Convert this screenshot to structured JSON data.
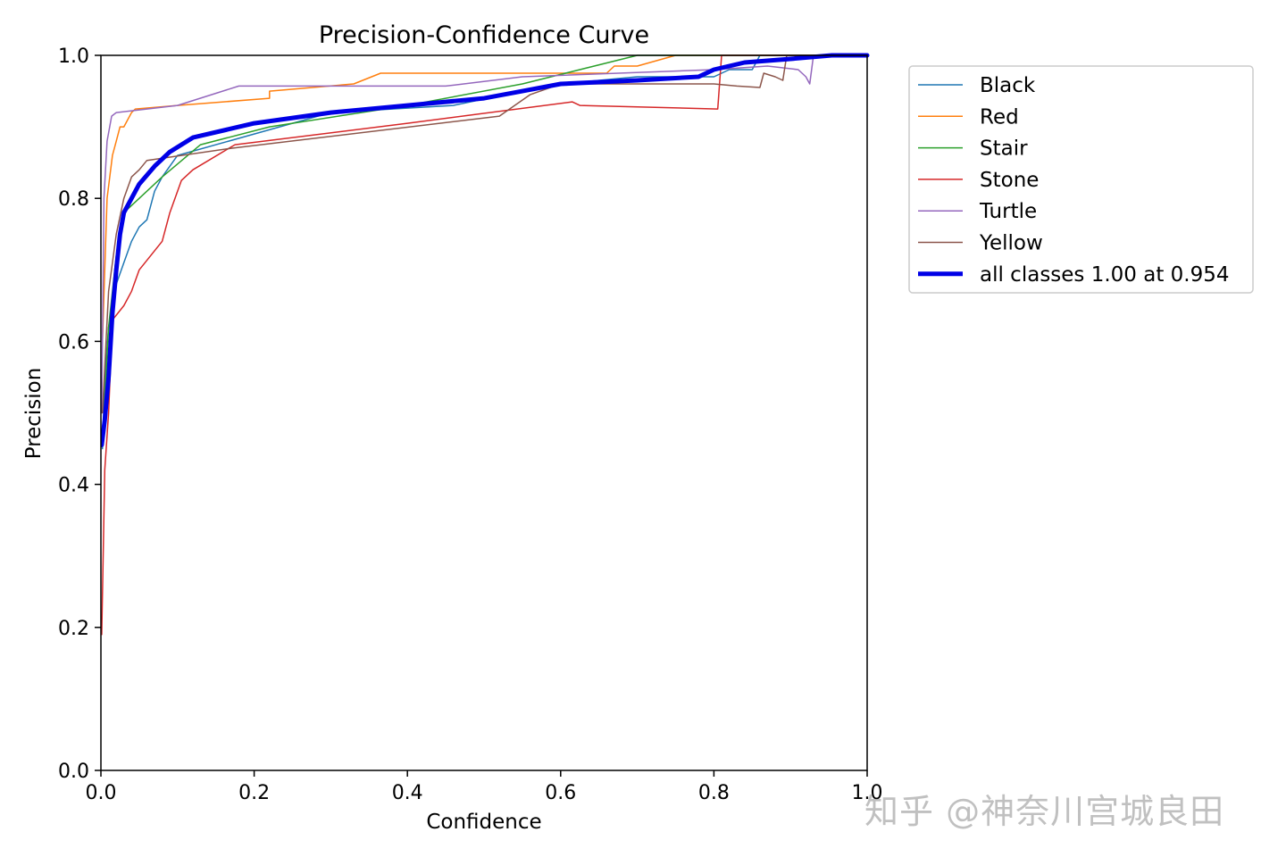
{
  "chart_data": {
    "type": "line",
    "title": "Precision-Confidence Curve",
    "xlabel": "Confidence",
    "ylabel": "Precision",
    "xlim": [
      0,
      1
    ],
    "ylim": [
      0,
      1
    ],
    "xticks": [
      "0.0",
      "0.2",
      "0.4",
      "0.6",
      "0.8",
      "1.0"
    ],
    "yticks": [
      "0.0",
      "0.2",
      "0.4",
      "0.6",
      "0.8",
      "1.0"
    ],
    "grid": false,
    "legend_position": "outside-top-right",
    "series": [
      {
        "name": "Black",
        "color": "#1f77b4",
        "width": 1.5,
        "points": [
          [
            0.002,
            0.45
          ],
          [
            0.005,
            0.55
          ],
          [
            0.01,
            0.62
          ],
          [
            0.02,
            0.68
          ],
          [
            0.03,
            0.71
          ],
          [
            0.04,
            0.74
          ],
          [
            0.05,
            0.76
          ],
          [
            0.06,
            0.77
          ],
          [
            0.07,
            0.81
          ],
          [
            0.08,
            0.83
          ],
          [
            0.1,
            0.86
          ],
          [
            0.2,
            0.89
          ],
          [
            0.3,
            0.92
          ],
          [
            0.46,
            0.93
          ],
          [
            0.55,
            0.95
          ],
          [
            0.6,
            0.96
          ],
          [
            0.7,
            0.97
          ],
          [
            0.8,
            0.97
          ],
          [
            0.82,
            0.98
          ],
          [
            0.85,
            0.98
          ],
          [
            0.86,
            1.0
          ],
          [
            1.0,
            1.0
          ]
        ]
      },
      {
        "name": "Red",
        "color": "#ff7f0e",
        "width": 1.5,
        "points": [
          [
            0.002,
            0.6
          ],
          [
            0.008,
            0.8
          ],
          [
            0.015,
            0.86
          ],
          [
            0.02,
            0.88
          ],
          [
            0.025,
            0.9
          ],
          [
            0.03,
            0.9
          ],
          [
            0.04,
            0.92
          ],
          [
            0.045,
            0.925
          ],
          [
            0.1,
            0.93
          ],
          [
            0.22,
            0.94
          ],
          [
            0.22,
            0.95
          ],
          [
            0.33,
            0.96
          ],
          [
            0.365,
            0.975
          ],
          [
            0.66,
            0.975
          ],
          [
            0.67,
            0.985
          ],
          [
            0.7,
            0.985
          ],
          [
            0.75,
            1.0
          ],
          [
            1.0,
            1.0
          ]
        ]
      },
      {
        "name": "Stair",
        "color": "#2ca02c",
        "width": 1.5,
        "points": [
          [
            0.002,
            0.46
          ],
          [
            0.01,
            0.62
          ],
          [
            0.02,
            0.72
          ],
          [
            0.03,
            0.78
          ],
          [
            0.05,
            0.8
          ],
          [
            0.08,
            0.83
          ],
          [
            0.13,
            0.875
          ],
          [
            0.22,
            0.9
          ],
          [
            0.4,
            0.93
          ],
          [
            0.55,
            0.96
          ],
          [
            0.7,
            1.0
          ],
          [
            1.0,
            1.0
          ]
        ]
      },
      {
        "name": "Stone",
        "color": "#d62728",
        "width": 1.5,
        "points": [
          [
            0.001,
            0.19
          ],
          [
            0.005,
            0.42
          ],
          [
            0.01,
            0.5
          ],
          [
            0.015,
            0.63
          ],
          [
            0.03,
            0.65
          ],
          [
            0.04,
            0.67
          ],
          [
            0.05,
            0.7
          ],
          [
            0.08,
            0.74
          ],
          [
            0.09,
            0.78
          ],
          [
            0.105,
            0.825
          ],
          [
            0.12,
            0.84
          ],
          [
            0.175,
            0.875
          ],
          [
            0.4,
            0.905
          ],
          [
            0.615,
            0.935
          ],
          [
            0.625,
            0.93
          ],
          [
            0.805,
            0.925
          ],
          [
            0.81,
            1.0
          ],
          [
            1.0,
            1.0
          ]
        ]
      },
      {
        "name": "Turtle",
        "color": "#9467bd",
        "width": 1.5,
        "points": [
          [
            0.001,
            0.5
          ],
          [
            0.004,
            0.8
          ],
          [
            0.008,
            0.88
          ],
          [
            0.014,
            0.915
          ],
          [
            0.02,
            0.92
          ],
          [
            0.1,
            0.93
          ],
          [
            0.18,
            0.957
          ],
          [
            0.45,
            0.957
          ],
          [
            0.55,
            0.97
          ],
          [
            0.8,
            0.98
          ],
          [
            0.87,
            0.985
          ],
          [
            0.91,
            0.98
          ],
          [
            0.92,
            0.97
          ],
          [
            0.925,
            0.96
          ],
          [
            0.93,
            1.0
          ],
          [
            1.0,
            1.0
          ]
        ]
      },
      {
        "name": "Yellow",
        "color": "#8c564b",
        "width": 1.5,
        "points": [
          [
            0.002,
            0.5
          ],
          [
            0.01,
            0.67
          ],
          [
            0.02,
            0.75
          ],
          [
            0.03,
            0.8
          ],
          [
            0.04,
            0.83
          ],
          [
            0.05,
            0.84
          ],
          [
            0.06,
            0.853
          ],
          [
            0.17,
            0.87
          ],
          [
            0.52,
            0.915
          ],
          [
            0.56,
            0.945
          ],
          [
            0.6,
            0.96
          ],
          [
            0.8,
            0.96
          ],
          [
            0.83,
            0.957
          ],
          [
            0.86,
            0.955
          ],
          [
            0.865,
            0.975
          ],
          [
            0.88,
            0.97
          ],
          [
            0.89,
            0.965
          ],
          [
            0.895,
            1.0
          ],
          [
            1.0,
            1.0
          ]
        ]
      },
      {
        "name": "all classes 1.00 at 0.954",
        "color": "#0000e6",
        "width": 5,
        "points": [
          [
            0.001,
            0.455
          ],
          [
            0.005,
            0.49
          ],
          [
            0.01,
            0.55
          ],
          [
            0.015,
            0.64
          ],
          [
            0.02,
            0.7
          ],
          [
            0.025,
            0.75
          ],
          [
            0.03,
            0.78
          ],
          [
            0.04,
            0.8
          ],
          [
            0.05,
            0.82
          ],
          [
            0.07,
            0.845
          ],
          [
            0.09,
            0.865
          ],
          [
            0.12,
            0.885
          ],
          [
            0.2,
            0.905
          ],
          [
            0.3,
            0.92
          ],
          [
            0.4,
            0.93
          ],
          [
            0.5,
            0.94
          ],
          [
            0.55,
            0.95
          ],
          [
            0.6,
            0.96
          ],
          [
            0.7,
            0.965
          ],
          [
            0.78,
            0.97
          ],
          [
            0.8,
            0.98
          ],
          [
            0.84,
            0.99
          ],
          [
            0.9,
            0.995
          ],
          [
            0.954,
            1.0
          ],
          [
            1.0,
            1.0
          ]
        ]
      }
    ]
  },
  "watermark": "知乎 @神奈川宫城良田"
}
